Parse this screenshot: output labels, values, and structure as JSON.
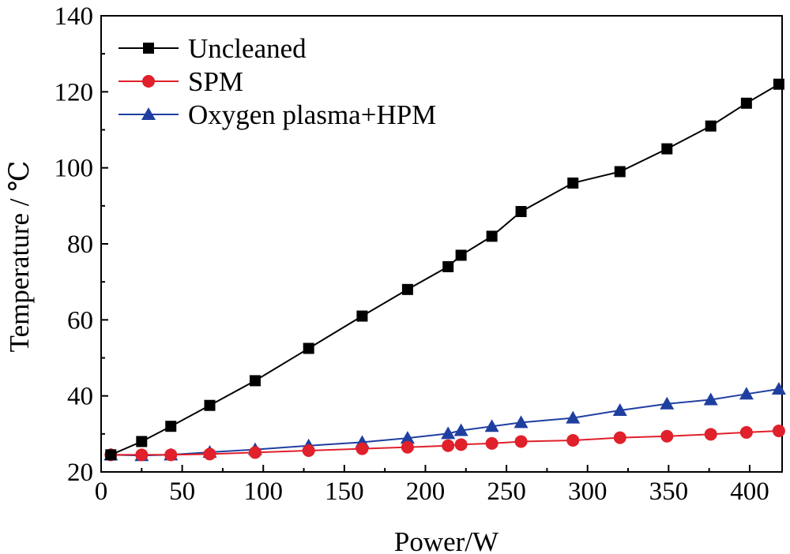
{
  "chart_data": {
    "type": "line",
    "xlabel": "Power/W",
    "ylabel": "Temperature / ℃",
    "xlim": [
      0,
      420
    ],
    "ylim": [
      20,
      140
    ],
    "x_ticks": [
      "0",
      "50",
      "100",
      "150",
      "200",
      "250",
      "300",
      "350",
      "400"
    ],
    "y_ticks": [
      "20",
      "40",
      "60",
      "80",
      "100",
      "120",
      "140"
    ],
    "grid": false,
    "legend_position": "top-left",
    "series": [
      {
        "name": "Uncleaned",
        "color": "#000000",
        "marker": "square",
        "x": [
          6,
          25,
          43,
          67,
          95,
          128,
          161,
          189,
          214,
          222,
          241,
          259,
          291,
          320,
          349,
          376,
          398,
          418
        ],
        "y": [
          24.5,
          28,
          32,
          37.5,
          44,
          52.5,
          61,
          68,
          74,
          77,
          82,
          88.5,
          96,
          99,
          105,
          111,
          117,
          122
        ]
      },
      {
        "name": "SPM",
        "color": "#e0202a",
        "marker": "circle",
        "x": [
          6,
          25,
          43,
          67,
          95,
          128,
          161,
          189,
          214,
          222,
          241,
          259,
          291,
          320,
          349,
          376,
          398,
          418
        ],
        "y": [
          24.5,
          24.5,
          24.5,
          24.7,
          25.1,
          25.6,
          26.1,
          26.5,
          26.9,
          27.2,
          27.5,
          28,
          28.3,
          29,
          29.4,
          29.9,
          30.4,
          30.8
        ]
      },
      {
        "name": "Oxygen plasma+HPM",
        "color": "#1f3fa0",
        "marker": "triangle",
        "x": [
          6,
          25,
          43,
          67,
          95,
          128,
          161,
          189,
          214,
          222,
          241,
          259,
          291,
          320,
          349,
          376,
          398,
          418
        ],
        "y": [
          24.5,
          24.3,
          24.5,
          25.2,
          25.9,
          26.9,
          27.8,
          28.9,
          30.1,
          30.9,
          32,
          33,
          34.2,
          36.2,
          37.9,
          39,
          40.5,
          41.8
        ]
      }
    ]
  }
}
